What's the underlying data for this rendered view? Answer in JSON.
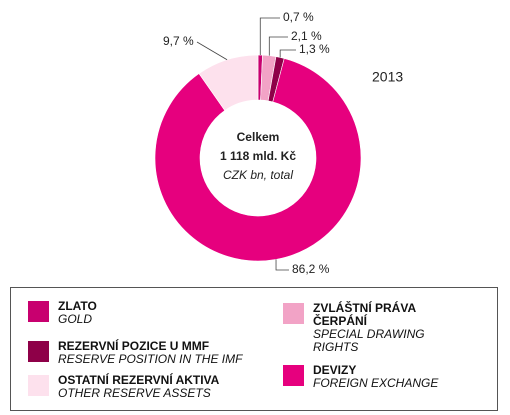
{
  "chart_data": {
    "type": "donut",
    "categories": [
      "ZLATO",
      "ZVLÁŠTNÍ PRÁVA ČERPÁNÍ",
      "REZERVNÍ POZICE U MMF",
      "DEVIZY",
      "OSTATNÍ REZERVNÍ AKTIVA"
    ],
    "categories_en": [
      "GOLD",
      "SPECIAL DRAWING RIGHTS",
      "RESERVE POSITION IN THE IMF",
      "FOREIGN EXCHANGE",
      "OTHER RESERVE ASSETS"
    ],
    "values": [
      0.7,
      2.1,
      1.3,
      86.2,
      9.7
    ],
    "value_labels": [
      "0,7 %",
      "2,1 %",
      "1,3 %",
      "86,2 %",
      "9,7 %"
    ],
    "colors": [
      "#c8006f",
      "#f2a3c6",
      "#8e0048",
      "#e6007e",
      "#fde1ed"
    ],
    "center_text": [
      "Celkem",
      "1 118 mld. Kč",
      "CZK bn, total"
    ],
    "annotation": "2013"
  }
}
